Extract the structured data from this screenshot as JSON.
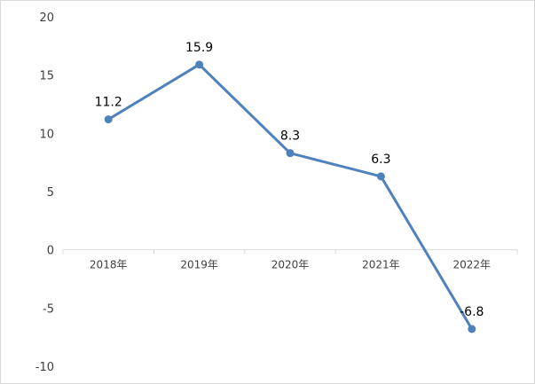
{
  "chart_data": {
    "type": "line",
    "categories": [
      "2018年",
      "2019年",
      "2020年",
      "2021年",
      "2022年"
    ],
    "series": [
      {
        "values": [
          11.2,
          15.9,
          8.3,
          6.3,
          -6.8
        ],
        "color": "#4f81bd"
      }
    ],
    "data_labels": [
      "11.2",
      "15.9",
      "8.3",
      "6.3",
      "-6.8"
    ],
    "ylim": [
      -10,
      20
    ],
    "yticks": [
      20,
      15,
      10,
      5,
      0,
      -5,
      -10
    ],
    "ytick_labels": [
      "20",
      "15",
      "10",
      "5",
      "0",
      "-5",
      "-10"
    ],
    "grid": false,
    "title": "",
    "xlabel": "",
    "ylabel": ""
  }
}
